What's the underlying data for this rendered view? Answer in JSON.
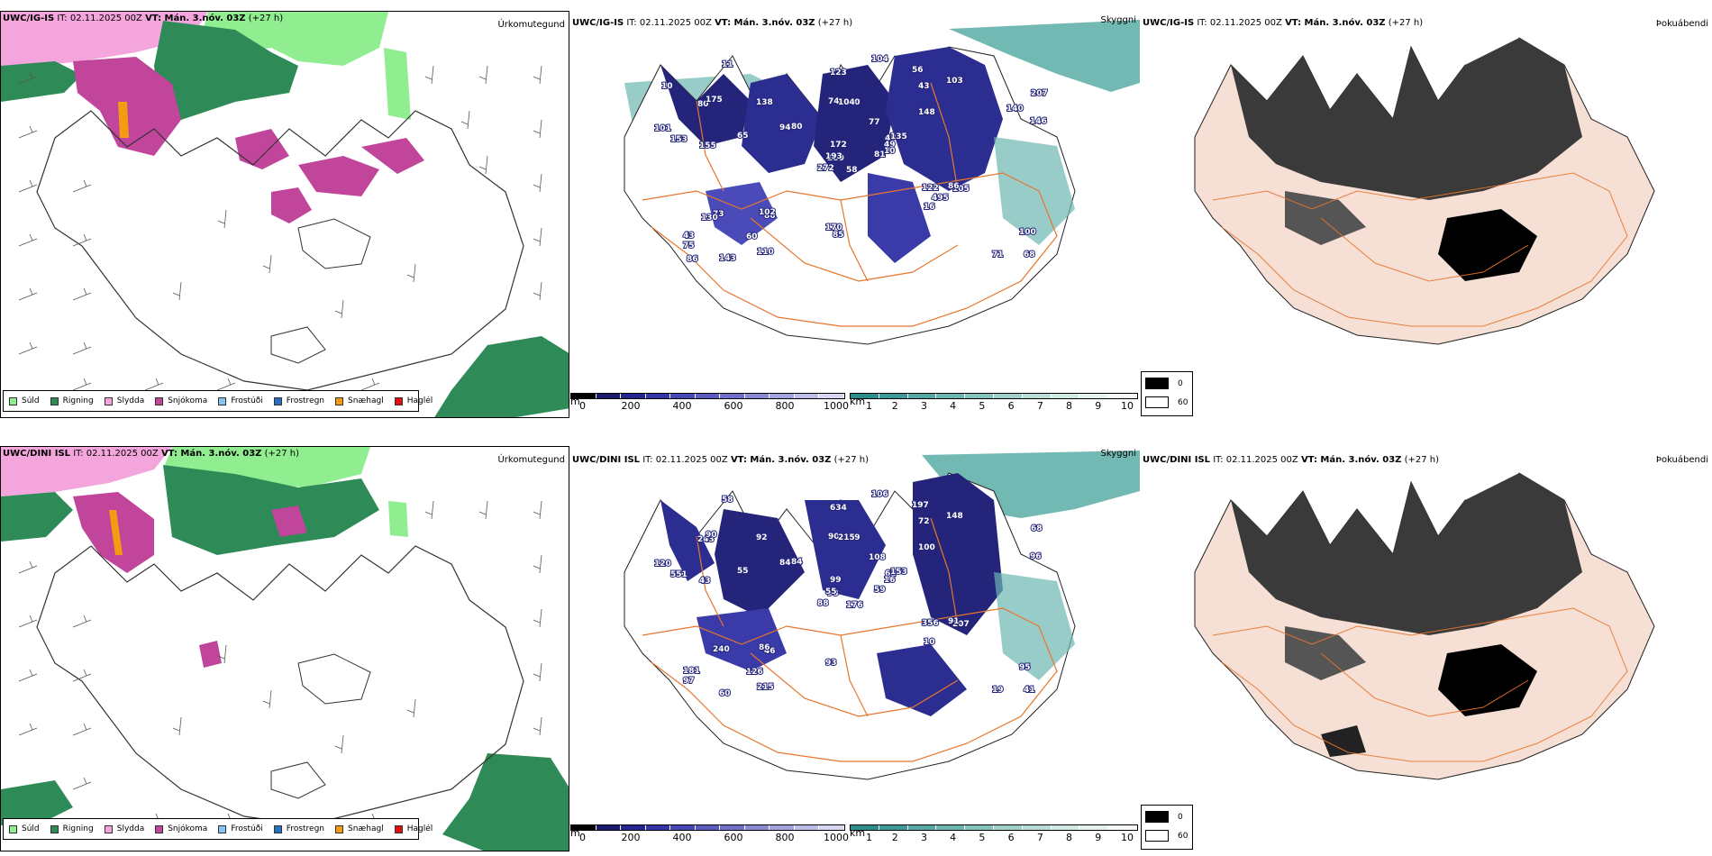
{
  "header": {
    "model": "UWC/IG-IS",
    "init_label": "IT:",
    "init_value": "02.11.2025 00Z",
    "valid_label": "VT:",
    "valid_value": "Mán. 3.nóv. 03Z",
    "lead": "(+27 h)"
  },
  "rows": [
    {
      "model": "UWC/IG-IS",
      "it": "IT: 02.11.2025 00Z",
      "vt": "VT: Mán. 3.nóv. 03Z",
      "lead": "(+27 h)",
      "panel_titles": {
        "precip": "Úrkomutegund",
        "cloud": "Skyggni",
        "fog": "Þokuábendi"
      },
      "cloud_labels": [
        "58",
        "80",
        "280",
        "43",
        "47",
        "86",
        "56",
        "40",
        "43",
        "81",
        "11",
        "68",
        "155",
        "207",
        "272",
        "148",
        "143",
        "74",
        "77",
        "73",
        "80",
        "75",
        "60",
        "104",
        "135",
        "105",
        "175",
        "123",
        "153",
        "122",
        "146",
        "193",
        "170",
        "172",
        "138",
        "103",
        "102",
        "71",
        "100",
        "86",
        "104",
        "94",
        "65",
        "16",
        "110",
        "101",
        "49",
        "86",
        "85",
        "10",
        "130",
        "140",
        "10",
        "495"
      ]
    },
    {
      "model": "UWC/DINI ISL",
      "it": "IT: 02.11.2025 00Z",
      "vt": "VT: Mán. 3.nóv. 03Z",
      "lead": "(+27 h)",
      "panel_titles": {
        "precip": "Úrkomutegund",
        "cloud": "Skyggni",
        "fog": "Þokuábendi"
      },
      "cloud_labels": [
        "176",
        "243",
        "98",
        "181",
        "62",
        "46",
        "197",
        "69",
        "72",
        "59",
        "58",
        "41",
        "43",
        "68",
        "88",
        "100",
        "60",
        "90",
        "108",
        "240",
        "84",
        "97",
        "126",
        "215",
        "153",
        "207",
        "90",
        "634",
        "551",
        "356",
        "96",
        "55",
        "93",
        "99",
        "92",
        "148",
        "86",
        "19",
        "95",
        "91",
        "106",
        "84",
        "55",
        "10",
        "215",
        "120",
        "16"
      ]
    }
  ],
  "precip_legend": [
    {
      "label": "Súld",
      "color": "#90ee90"
    },
    {
      "label": "Rigning",
      "color": "#2e8b57"
    },
    {
      "label": "Slydda",
      "color": "#f4a6dc"
    },
    {
      "label": "Snjókoma",
      "color": "#c0459b"
    },
    {
      "label": "Frostúði",
      "color": "#87c4f0"
    },
    {
      "label": "Frostregn",
      "color": "#2a6fbf"
    },
    {
      "label": "Snæhagl",
      "color": "#f39c12"
    },
    {
      "label": "Haglél",
      "color": "#e01010"
    }
  ],
  "cloudbase_bar": {
    "unit": "m",
    "ticks": [
      "0",
      "200",
      "400",
      "600",
      "800",
      "1000"
    ],
    "colors": [
      "#000000",
      "#1a1a6e",
      "#25258f",
      "#3535a8",
      "#4848b4",
      "#5c5cbf",
      "#7070c9",
      "#8a8ad4",
      "#a3a3de",
      "#bdbde8",
      "#d6d6f2"
    ]
  },
  "visibility_bar": {
    "unit": "km",
    "ticks": [
      "1",
      "2",
      "3",
      "4",
      "5",
      "6",
      "7",
      "8",
      "9",
      "10"
    ],
    "colors": [
      "#2d8c8c",
      "#3e9a98",
      "#55a8a4",
      "#6cb6b0",
      "#85c4bd",
      "#9fd1ca",
      "#b8ddd7",
      "#cfe9e4",
      "#e4f3f0",
      "#f5faf9"
    ]
  },
  "fog_legend": [
    {
      "value": "0",
      "color": "#000000"
    },
    {
      "value": "60",
      "color": "#ffffff"
    }
  ],
  "colors": {
    "rain": "#2e8b57",
    "drizzle": "#90ee90",
    "sleet": "#f4a6dc",
    "snow": "#c0459b",
    "cloud_dark": "#23247a",
    "visibility": "#4ea89f",
    "roads": "#e8762c",
    "land_tint": "#f6dfd4"
  }
}
